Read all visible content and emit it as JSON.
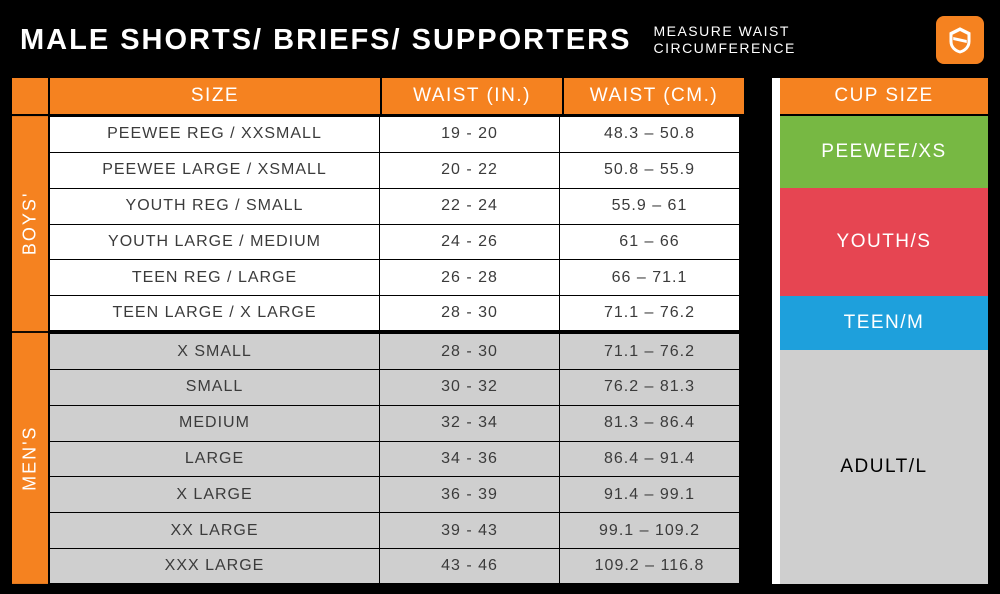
{
  "colors": {
    "background": "#000000",
    "orange": "#f58220",
    "white": "#ffffff",
    "boys_row_bg": "#ffffff",
    "mens_row_bg": "#cfcfcf",
    "cell_text": "#3b3b3b",
    "cup_peewee": "#77b843",
    "cup_youth": "#e64552",
    "cup_teen": "#1ea0dc",
    "cup_adult": "#cfcfcf"
  },
  "header": {
    "title": "MALE SHORTS/ BRIEFS/ SUPPORTERS",
    "subtitle_line1": "MEASURE WAIST",
    "subtitle_line2": "CIRCUMFERENCE"
  },
  "table": {
    "headers": {
      "size": "SIZE",
      "waist_in": "WAIST (IN.)",
      "waist_cm": "WAIST (CM.)"
    },
    "groups": [
      {
        "label": "BOYS'",
        "key": "boys",
        "rows": [
          {
            "size": "PEEWEE REG / XXSMALL",
            "in": "19 - 20",
            "cm": "48.3 – 50.8"
          },
          {
            "size": "PEEWEE LARGE / XSMALL",
            "in": "20 - 22",
            "cm": "50.8 – 55.9"
          },
          {
            "size": "YOUTH REG / SMALL",
            "in": "22 - 24",
            "cm": "55.9 – 61"
          },
          {
            "size": "YOUTH LARGE / MEDIUM",
            "in": "24 - 26",
            "cm": "61 – 66"
          },
          {
            "size": "TEEN REG / LARGE",
            "in": "26 - 28",
            "cm": "66 – 71.1"
          },
          {
            "size": "TEEN LARGE / X LARGE",
            "in": "28 - 30",
            "cm": "71.1 – 76.2"
          }
        ]
      },
      {
        "label": "MEN'S",
        "key": "mens",
        "rows": [
          {
            "size": "X SMALL",
            "in": "28 - 30",
            "cm": "71.1 – 76.2"
          },
          {
            "size": "SMALL",
            "in": "30 - 32",
            "cm": "76.2 – 81.3"
          },
          {
            "size": "MEDIUM",
            "in": "32 - 34",
            "cm": "81.3 – 86.4"
          },
          {
            "size": "LARGE",
            "in": "34 - 36",
            "cm": "86.4 – 91.4"
          },
          {
            "size": "X LARGE",
            "in": "36 - 39",
            "cm": "91.4 – 99.1"
          },
          {
            "size": "XX LARGE",
            "in": "39 - 43",
            "cm": "99.1 – 109.2"
          },
          {
            "size": "XXX LARGE",
            "in": "43 - 46",
            "cm": "109.2 – 116.8"
          }
        ]
      }
    ]
  },
  "cup": {
    "header": "CUP SIZE",
    "items": [
      {
        "key": "peewee",
        "label": "PEEWEE/XS",
        "color_key": "cup_peewee",
        "text": "#ffffff"
      },
      {
        "key": "youth",
        "label": "YOUTH/S",
        "color_key": "cup_youth",
        "text": "#ffffff"
      },
      {
        "key": "teen",
        "label": "TEEN/M",
        "color_key": "cup_teen",
        "text": "#ffffff"
      },
      {
        "key": "adult",
        "label": "ADULT/L",
        "color_key": "cup_adult",
        "text": "#000000"
      }
    ]
  }
}
